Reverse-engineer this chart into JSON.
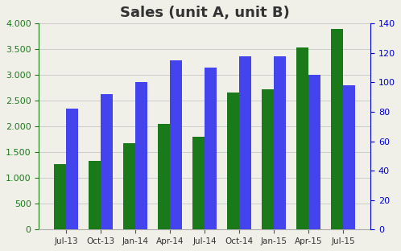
{
  "title": "Sales (unit A, unit B)",
  "categories": [
    "Jul-13",
    "Oct-13",
    "Jan-14",
    "Apr-14",
    "Jul-14",
    "Oct-14",
    "Jan-15",
    "Apr-15",
    "Jul-15"
  ],
  "green_values": [
    1270,
    1340,
    1670,
    2050,
    1800,
    2660,
    2720,
    3530,
    3900
  ],
  "blue_values": [
    82,
    92,
    100,
    115,
    110,
    118,
    118,
    105,
    98
  ],
  "green_color": "#1a7a1a",
  "blue_color": "#4444ee",
  "left_ylim": [
    0,
    4000
  ],
  "right_ylim": [
    0,
    140
  ],
  "left_yticks": [
    0,
    500,
    1000,
    1500,
    2000,
    2500,
    3000,
    3500,
    4000
  ],
  "right_yticks": [
    0,
    20,
    40,
    60,
    80,
    100,
    120,
    140
  ],
  "left_tick_color": "#1a7a1a",
  "right_tick_color": "#0000cc",
  "title_color": "#333333",
  "background_color": "#f0f0e8",
  "bar_width": 0.35,
  "grid_color": "#cccccc"
}
